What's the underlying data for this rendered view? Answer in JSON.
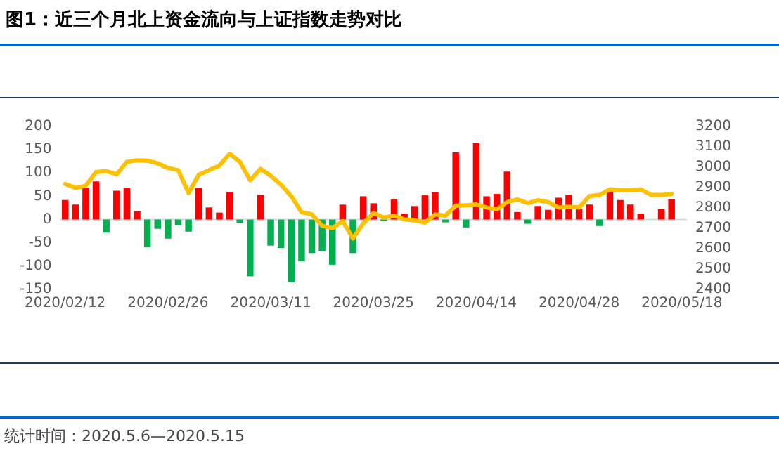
{
  "chart_data": {
    "type": "bar",
    "title": "图1：近三个月北上资金流向与上证指数走势对比",
    "categories": [
      "2020/02/12",
      null,
      null,
      null,
      null,
      null,
      null,
      null,
      null,
      null,
      "2020/02/26",
      null,
      null,
      null,
      null,
      null,
      null,
      null,
      null,
      null,
      "2020/03/11",
      null,
      null,
      null,
      null,
      null,
      null,
      null,
      null,
      null,
      "2020/03/25",
      null,
      null,
      null,
      null,
      null,
      null,
      null,
      null,
      null,
      "2020/04/14",
      null,
      null,
      null,
      null,
      null,
      null,
      null,
      null,
      null,
      "2020/04/28",
      null,
      null,
      null,
      null,
      null,
      null,
      null,
      null,
      null,
      "2020/05/18"
    ],
    "series": [
      {
        "colors": [
          "#ff0000",
          "#ff0000",
          "#ff0000",
          "#ff0000",
          "#00b050",
          "#ff0000",
          "#ff0000",
          "#ff0000",
          "#00b050",
          "#00b050",
          "#00b050",
          "#00b050",
          "#00b050",
          "#ff0000",
          "#ff0000",
          "#ff0000",
          "#ff0000",
          "#00b050",
          "#00b050",
          "#ff0000",
          "#00b050",
          "#00b050",
          "#00b050",
          "#00b050",
          "#00b050",
          "#00b050",
          "#00b050",
          "#ff0000",
          "#00b050",
          "#ff0000",
          "#ff0000",
          "#00b050",
          "#ff0000",
          "#ff0000",
          "#ff0000",
          "#ff0000",
          "#ff0000",
          "#00b050",
          "#ff0000",
          "#00b050",
          "#ff0000",
          "#ff0000",
          "#ff0000",
          "#ff0000",
          "#ff0000",
          "#00b050",
          "#ff0000",
          "#ff0000",
          "#ff0000",
          "#ff0000",
          "#ff0000",
          "#ff0000",
          "#00b050",
          "#ff0000",
          "#ff0000",
          "#ff0000",
          "#ff0000",
          "#ff0000",
          "#ff0000",
          "#ff0000",
          "#ff0000"
        ],
        "values": [
          42,
          32,
          68,
          82,
          -28,
          62,
          68,
          18,
          -60,
          -20,
          -41,
          -12,
          -26,
          68,
          26,
          15,
          59,
          -8,
          -122,
          53,
          -56,
          -61,
          -134,
          -90,
          -72,
          -67,
          -97,
          32,
          -72,
          50,
          35,
          -3,
          43,
          13,
          29,
          52,
          59,
          -6,
          144,
          -17,
          164,
          50,
          55,
          103,
          16,
          -9,
          29,
          21,
          47,
          53,
          23,
          32,
          -14,
          61,
          42,
          32,
          13,
          0,
          23,
          44,
          null
        ]
      },
      {
        "type": "line",
        "axis": "y2",
        "color": "#ffc000",
        "values": [
          2918,
          2898,
          2909,
          2976,
          2981,
          2965,
          3026,
          3034,
          3032,
          3019,
          2996,
          2985,
          2873,
          2963,
          2985,
          3008,
          3066,
          3026,
          2936,
          2992,
          2958,
          2914,
          2858,
          2779,
          2768,
          2712,
          2701,
          2735,
          2650,
          2724,
          2775,
          2753,
          2762,
          2744,
          2739,
          2728,
          2768,
          2762,
          2811,
          2813,
          2817,
          2802,
          2793,
          2829,
          2842,
          2824,
          2838,
          2829,
          2802,
          2806,
          2802,
          2858,
          2864,
          2891,
          2887,
          2887,
          2891,
          2864,
          2864,
          2869,
          null
        ]
      }
    ],
    "ylim": [
      -150,
      200
    ],
    "yticks": [
      -150,
      -100,
      -50,
      0,
      50,
      100,
      150,
      200
    ],
    "y2lim": [
      2400,
      3200
    ],
    "y2ticks": [
      2400,
      2500,
      2600,
      2700,
      2800,
      2900,
      3000,
      3100,
      3200
    ],
    "legend": false,
    "annotations": [
      "统计时间：2020.5.6—2020.5.15"
    ]
  }
}
